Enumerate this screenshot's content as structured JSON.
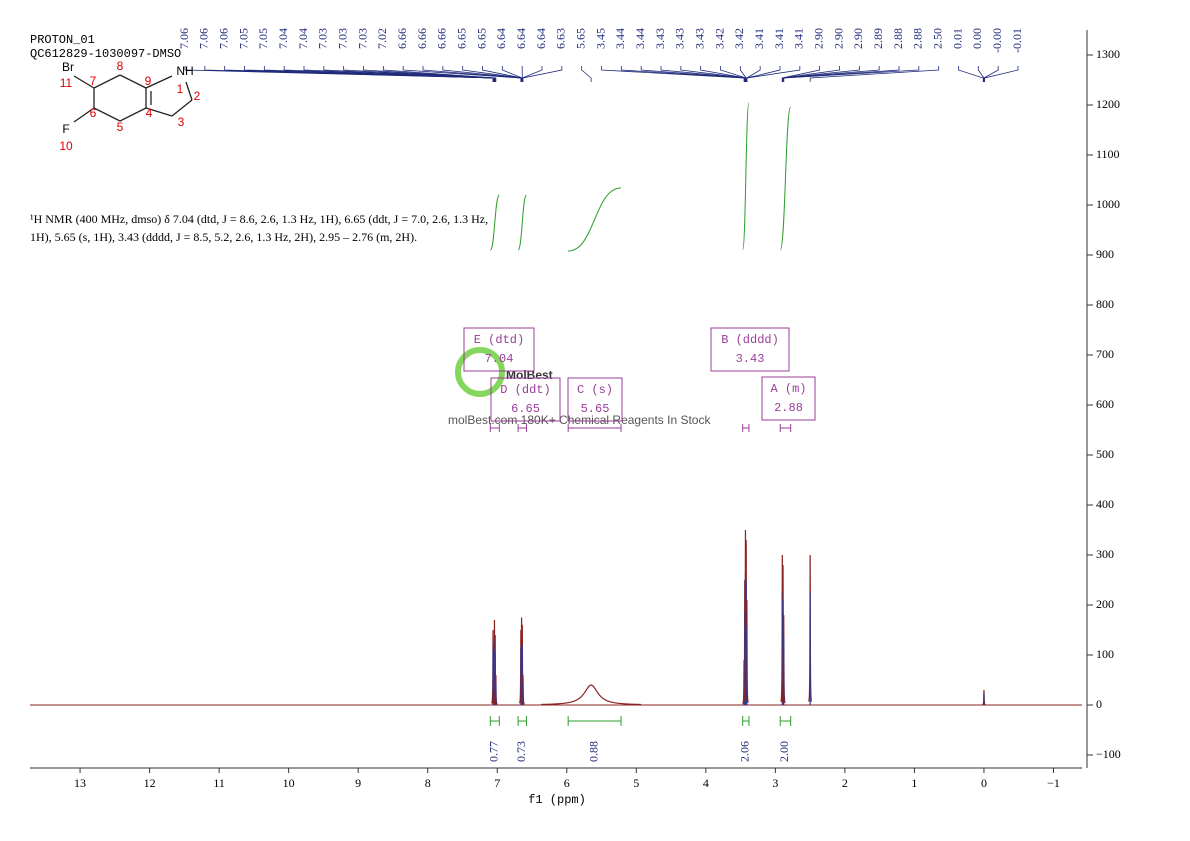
{
  "chart_data": {
    "type": "nmr",
    "title": "PROTON_01",
    "subtitle": "QC612829-1030097-DMSO",
    "xlabel": "f1 (ppm)",
    "xlim": [
      13.72,
      -1.41
    ],
    "xticks": [
      13,
      12,
      11,
      10,
      9,
      8,
      7,
      6,
      5,
      4,
      3,
      2,
      1,
      0,
      {
        "value": -1,
        "label": "−1"
      }
    ],
    "ylim": [
      -126,
      1350
    ],
    "yticks": [
      {
        "value": -100,
        "label": "−100"
      },
      0,
      100,
      200,
      300,
      400,
      500,
      600,
      700,
      800,
      900,
      1000,
      1100,
      1200,
      1300
    ],
    "color": "#8b2222",
    "peaks": {
      "x": [
        7.06,
        7.05,
        7.04,
        7.03,
        7.02,
        6.66,
        6.65,
        6.64,
        6.63,
        5.65,
        3.45,
        3.44,
        3.43,
        3.42,
        3.41,
        2.9,
        2.89,
        2.88,
        2.5,
        0
      ],
      "values": [
        150,
        120,
        170,
        140,
        60,
        150,
        175,
        160,
        60,
        40,
        90,
        250,
        350,
        330,
        210,
        300,
        280,
        180,
        300,
        30
      ],
      "widths": [
        0.003,
        0.003,
        0.003,
        0.003,
        0.003,
        0.003,
        0.003,
        0.003,
        0.003,
        0.12,
        0.003,
        0.003,
        0.003,
        0.003,
        0.003,
        0.003,
        0.003,
        0.003,
        0.003,
        0.003
      ]
    },
    "peak_picks": [
      7.06,
      7.06,
      7.06,
      7.05,
      7.05,
      7.04,
      7.04,
      7.03,
      7.03,
      7.03,
      7.02,
      6.66,
      6.66,
      6.66,
      6.65,
      6.65,
      6.64,
      6.64,
      6.64,
      6.63,
      5.65,
      3.45,
      3.44,
      3.44,
      3.43,
      3.43,
      3.43,
      3.42,
      3.42,
      3.41,
      3.41,
      3.41,
      {
        "value": 2.9,
        "label": "2.90"
      },
      {
        "value": 2.9,
        "label": "2.90"
      },
      {
        "value": 2.9,
        "label": "2.90"
      },
      2.89,
      2.88,
      2.88,
      {
        "value": 2.5,
        "label": "2.50"
      },
      0.01,
      {
        "value": 0,
        "label": "0.00"
      },
      {
        "value": 0,
        "label": "-0.00"
      },
      -0.01
    ],
    "integrals": {
      "ranges": [
        [
          7.1,
          6.97
        ],
        [
          6.7,
          6.58
        ],
        [
          5.98,
          5.22
        ],
        [
          3.47,
          3.38
        ],
        [
          2.93,
          2.78
        ]
      ],
      "values": [
        0.77,
        0.73,
        0.88,
        2.06,
        2
      ],
      "value_labels": [
        "0.77",
        "0.73",
        "0.88",
        "2.06",
        "2.00"
      ]
    },
    "multiplets": [
      {
        "name": "E (dtd)",
        "shift": 7.04
      },
      {
        "name": "D (ddt)",
        "shift": 6.65
      },
      {
        "name": "C (s)",
        "shift": 5.65
      },
      {
        "name": "B (dddd)",
        "shift": 3.43
      },
      {
        "name": "A (m)",
        "shift": 2.88
      }
    ],
    "annotation": [
      "¹H NMR (400 MHz, dmso) δ 7.04 (dtd, J = 8.6, 2.6, 1.3 Hz, 1H), 6.65 (ddt, J = 7.0, 2.6, 1.3 Hz,",
      "1H), 5.65 (s, 1H), 3.43 (dddd, J = 8.5, 5.2, 2.6, 1.3 Hz, 2H), 2.95 – 2.76 (m, 2H)."
    ],
    "watermark": "MolBest",
    "watermark_sub": "molBest.com 180K+ Chemical Reagents In Stock",
    "molecule": {
      "atoms": [
        "Br",
        "NH",
        "F"
      ],
      "numbers": [
        "11",
        "8",
        "7",
        "9",
        "1",
        "2",
        "6",
        "4",
        "3",
        "5",
        "10"
      ]
    }
  }
}
